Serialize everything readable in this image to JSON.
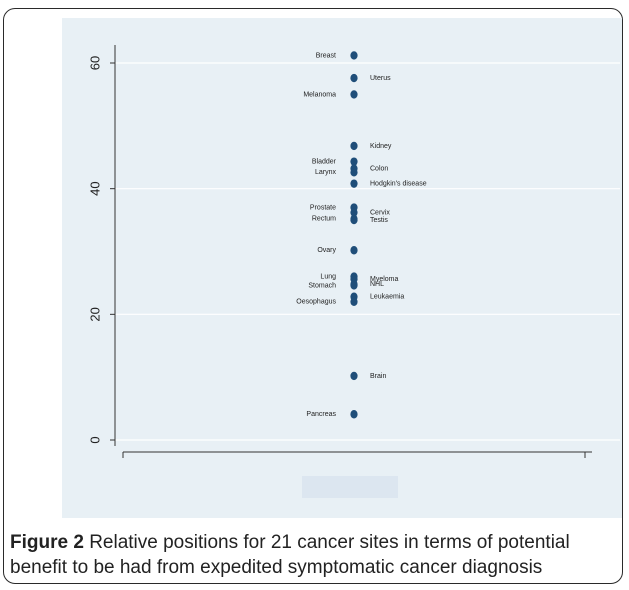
{
  "figure": {
    "label": "Figure 2",
    "caption": "Relative positions for 21 cancer sites in terms of potential benefit to be had from expedited symptomatic cancer diagnosis"
  },
  "chart_data": {
    "type": "scatter",
    "title": "",
    "xlabel": "",
    "ylabel": "",
    "ylim": [
      0,
      60
    ],
    "yticks": [
      0,
      20,
      40,
      60
    ],
    "grid": true,
    "point_color": "#1f4e79",
    "points": [
      {
        "label": "Breast",
        "y": 61.2,
        "side": "left"
      },
      {
        "label": "Uterus",
        "y": 57.6,
        "side": "right"
      },
      {
        "label": "Melanoma",
        "y": 55.0,
        "side": "left"
      },
      {
        "label": "Kidney",
        "y": 46.8,
        "side": "right"
      },
      {
        "label": "Bladder",
        "y": 44.3,
        "side": "left"
      },
      {
        "label": "Colon",
        "y": 43.2,
        "side": "right"
      },
      {
        "label": "Larynx",
        "y": 42.6,
        "side": "left"
      },
      {
        "label": "Hodgkin's disease",
        "y": 40.8,
        "side": "right"
      },
      {
        "label": "Prostate",
        "y": 37.0,
        "side": "left"
      },
      {
        "label": "Cervix",
        "y": 36.2,
        "side": "right"
      },
      {
        "label": "Rectum",
        "y": 35.2,
        "side": "left"
      },
      {
        "label": "Testis",
        "y": 35.0,
        "side": "right"
      },
      {
        "label": "Ovary",
        "y": 30.2,
        "side": "left"
      },
      {
        "label": "Lung",
        "y": 26.0,
        "side": "left"
      },
      {
        "label": "Myeloma",
        "y": 25.6,
        "side": "right"
      },
      {
        "label": "NHL",
        "y": 24.8,
        "side": "right"
      },
      {
        "label": "Stomach",
        "y": 24.6,
        "side": "left"
      },
      {
        "label": "Leukaemia",
        "y": 22.8,
        "side": "right"
      },
      {
        "label": "Oesophagus",
        "y": 22.0,
        "side": "left"
      },
      {
        "label": "Brain",
        "y": 10.2,
        "side": "right"
      },
      {
        "label": "Pancreas",
        "y": 4.1,
        "side": "left"
      }
    ]
  }
}
